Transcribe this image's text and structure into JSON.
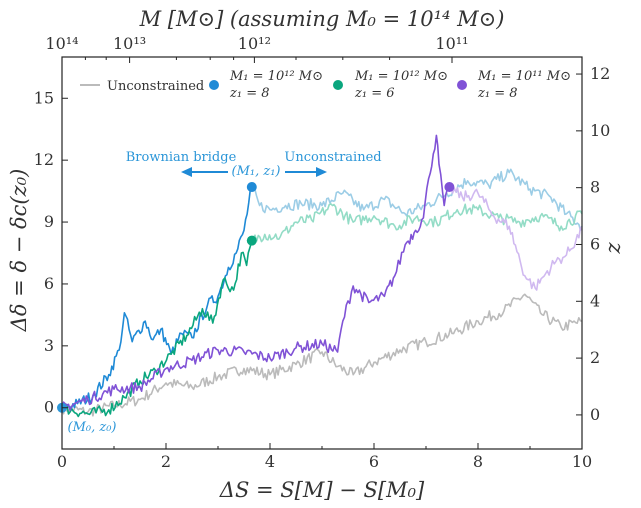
{
  "chart_data": {
    "type": "line",
    "title": "M [M⊙] (assuming M₀ = 10¹⁴ M⊙)",
    "xlabel": "ΔS = S[M] − S[M₀]",
    "ylabel": "Δδ = δ − δc(z₀)",
    "y2label": "z",
    "xlim": [
      0,
      10
    ],
    "ylim": [
      -2,
      17
    ],
    "y2lim": [
      -1.2,
      12.6
    ],
    "xticks": [
      "0",
      "2",
      "4",
      "6",
      "8",
      "10"
    ],
    "yticks": [
      "0",
      "3",
      "6",
      "9",
      "12",
      "15"
    ],
    "y2ticks": [
      "0",
      "2",
      "4",
      "6",
      "8",
      "10",
      "12"
    ],
    "top_ticks": [
      {
        "label": "10¹⁴",
        "x": 0.0
      },
      {
        "label": "10¹³",
        "x": 1.3
      },
      {
        "label": "10¹²",
        "x": 3.7
      },
      {
        "label": "10¹¹",
        "x": 7.5
      }
    ],
    "legend": {
      "placement": "top",
      "items": [
        {
          "label": "Unconstrained",
          "color": "#bbbbbb",
          "kind": "line"
        },
        {
          "label1": "M₁ = 10¹² M⊙",
          "label2": "z₁ = 8",
          "color": "#1f8ad6",
          "kind": "dot"
        },
        {
          "label1": "M₁ = 10¹² M⊙",
          "label2": "z₁ = 6",
          "color": "#0aa67e",
          "kind": "dot"
        },
        {
          "label1": "M₁ = 10¹¹ M⊙",
          "label2": "z₁ = 8",
          "color": "#8052d6",
          "kind": "dot"
        }
      ]
    },
    "annotations": {
      "left": "Brownian bridge",
      "right": "Unconstrained",
      "point": "(M₁, z₁)",
      "origin": "(M₀, z₀)",
      "color": "#2b96d8"
    },
    "series": [
      {
        "name": "Unconstrained",
        "color": "#bbbbbb",
        "points": [
          [
            0,
            0
          ],
          [
            0.5,
            -0.2
          ],
          [
            1,
            0.1
          ],
          [
            1.5,
            0.4
          ],
          [
            2,
            1.2
          ],
          [
            2.5,
            1.0
          ],
          [
            3,
            1.5
          ],
          [
            3.5,
            1.9
          ],
          [
            4,
            1.6
          ],
          [
            4.5,
            2.1
          ],
          [
            5,
            2.7
          ],
          [
            5.3,
            2.0
          ],
          [
            5.6,
            1.6
          ],
          [
            6,
            2.2
          ],
          [
            6.5,
            2.8
          ],
          [
            7,
            3.2
          ],
          [
            7.5,
            3.6
          ],
          [
            8,
            4.2
          ],
          [
            8.5,
            4.7
          ],
          [
            8.9,
            5.5
          ],
          [
            9.2,
            4.6
          ],
          [
            9.6,
            3.9
          ],
          [
            10,
            4.2
          ]
        ]
      },
      {
        "name": "M₁ = 10¹² M⊙, z₁ = 8",
        "color": "#1f8ad6",
        "points": [
          [
            0,
            0
          ],
          [
            0.3,
            0.2
          ],
          [
            0.6,
            0.6
          ],
          [
            0.9,
            1.6
          ],
          [
            1.1,
            2.8
          ],
          [
            1.2,
            4.6
          ],
          [
            1.35,
            3.2
          ],
          [
            1.6,
            4.2
          ],
          [
            1.75,
            3.3
          ],
          [
            1.9,
            3.8
          ],
          [
            2.1,
            2.6
          ],
          [
            2.3,
            3.6
          ],
          [
            2.5,
            3.4
          ],
          [
            2.8,
            5.0
          ],
          [
            3.0,
            5.4
          ],
          [
            3.2,
            6.8
          ],
          [
            3.35,
            7.5
          ],
          [
            3.5,
            8.6
          ],
          [
            3.65,
            10.7
          ]
        ]
      },
      {
        "name": "M₁ = 10¹² M⊙, z₁ = 8 (unconstrained)",
        "color": "#9ccde6",
        "points": [
          [
            3.65,
            10.7
          ],
          [
            3.8,
            9.8
          ],
          [
            4.0,
            9.6
          ],
          [
            4.3,
            9.8
          ],
          [
            4.6,
            9.9
          ],
          [
            5.0,
            9.8
          ],
          [
            5.4,
            10.4
          ],
          [
            5.8,
            9.6
          ],
          [
            6.2,
            10.1
          ],
          [
            6.6,
            9.4
          ],
          [
            7.0,
            9.8
          ],
          [
            7.4,
            10.4
          ],
          [
            7.8,
            11.0
          ],
          [
            8.2,
            10.8
          ],
          [
            8.6,
            11.4
          ],
          [
            9.0,
            10.6
          ],
          [
            9.4,
            10.2
          ],
          [
            9.7,
            9.4
          ],
          [
            10,
            8.8
          ]
        ]
      },
      {
        "name": "M₁ = 10¹² M⊙, z₁ = 6",
        "color": "#0aa67e",
        "points": [
          [
            0,
            0
          ],
          [
            0.5,
            -0.3
          ],
          [
            0.9,
            -0.1
          ],
          [
            1.2,
            0.5
          ],
          [
            1.5,
            1.3
          ],
          [
            1.8,
            1.8
          ],
          [
            2.1,
            2.6
          ],
          [
            2.4,
            3.5
          ],
          [
            2.7,
            4.8
          ],
          [
            2.9,
            4.1
          ],
          [
            3.1,
            6.2
          ],
          [
            3.3,
            5.7
          ],
          [
            3.45,
            7.5
          ],
          [
            3.55,
            6.9
          ],
          [
            3.65,
            8.1
          ]
        ]
      },
      {
        "name": "M₁ = 10¹² M⊙, z₁ = 6 (unconstrained)",
        "color": "#93dcc6",
        "points": [
          [
            3.65,
            8.1
          ],
          [
            3.9,
            8.4
          ],
          [
            4.2,
            8.3
          ],
          [
            4.5,
            9.0
          ],
          [
            4.8,
            9.1
          ],
          [
            5.2,
            9.8
          ],
          [
            5.6,
            9.0
          ],
          [
            6.0,
            9.3
          ],
          [
            6.4,
            8.8
          ],
          [
            6.8,
            9.2
          ],
          [
            7.2,
            9.0
          ],
          [
            7.6,
            9.6
          ],
          [
            8.0,
            9.6
          ],
          [
            8.4,
            9.2
          ],
          [
            8.8,
            9.0
          ],
          [
            9.2,
            9.3
          ],
          [
            9.6,
            8.8
          ],
          [
            10,
            9.4
          ]
        ]
      },
      {
        "name": "M₁ = 10¹¹ M⊙, z₁ = 8",
        "color": "#8052d6",
        "points": [
          [
            0,
            0
          ],
          [
            0.5,
            0.4
          ],
          [
            1.0,
            0.9
          ],
          [
            1.5,
            1.0
          ],
          [
            2.0,
            1.9
          ],
          [
            2.5,
            2.3
          ],
          [
            3.0,
            2.8
          ],
          [
            3.5,
            2.7
          ],
          [
            4.0,
            2.4
          ],
          [
            4.5,
            2.9
          ],
          [
            5.0,
            3.1
          ],
          [
            5.3,
            2.7
          ],
          [
            5.4,
            4.2
          ],
          [
            5.6,
            5.9
          ],
          [
            5.9,
            5.1
          ],
          [
            6.2,
            5.4
          ],
          [
            6.4,
            6.4
          ],
          [
            6.6,
            7.9
          ],
          [
            6.8,
            8.6
          ],
          [
            6.95,
            9.2
          ],
          [
            7.05,
            11.1
          ],
          [
            7.2,
            13.2
          ],
          [
            7.25,
            11.8
          ],
          [
            7.35,
            9.8
          ],
          [
            7.45,
            10.7
          ]
        ]
      },
      {
        "name": "M₁ = 10¹¹ M⊙, z₁ = 8 (unconstrained)",
        "color": "#d0b9f0",
        "points": [
          [
            7.45,
            10.7
          ],
          [
            7.7,
            10.2
          ],
          [
            8.0,
            10.4
          ],
          [
            8.3,
            9.3
          ],
          [
            8.6,
            8.8
          ],
          [
            8.9,
            6.4
          ],
          [
            9.1,
            5.8
          ],
          [
            9.3,
            6.5
          ],
          [
            9.5,
            7.1
          ],
          [
            9.7,
            7.4
          ],
          [
            10,
            8.6
          ]
        ]
      }
    ],
    "markers": [
      {
        "x": 0,
        "y": 0,
        "color": "#2b96d8"
      },
      {
        "x": 3.65,
        "y": 10.7,
        "color": "#1f8ad6"
      },
      {
        "x": 3.65,
        "y": 8.1,
        "color": "#0aa67e"
      },
      {
        "x": 7.45,
        "y": 10.7,
        "color": "#8052d6"
      }
    ]
  }
}
